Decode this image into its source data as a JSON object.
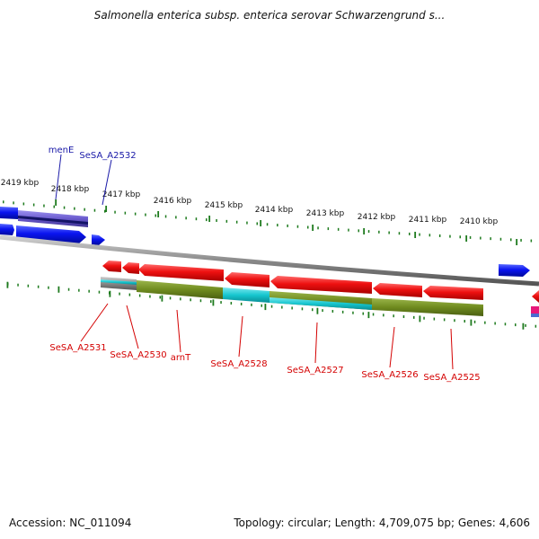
{
  "title": "Salmonella enterica subsp. enterica serovar Schwarzengrund s...",
  "footer": {
    "accession": "Accession: NC_011094",
    "info": "Topology: circular; Length: 4,709,075 bp; Genes: 4,606"
  },
  "colors": {
    "forward_gene": "#0a14f0",
    "reverse_gene": "#ee1111",
    "backbone": "#8a8a8a",
    "tick": "#1d7a1d",
    "forward_label": "#1a1aa8",
    "reverse_label": "#d40000",
    "olive": "#6f8b1f",
    "cyan": "#16c6cf",
    "purple": "#6a5acd"
  },
  "ticks": [
    {
      "label": "2419 kbp"
    },
    {
      "label": "2418 kbp"
    },
    {
      "label": "2417 kbp"
    },
    {
      "label": "2416 kbp"
    },
    {
      "label": "2415 kbp"
    },
    {
      "label": "2414 kbp"
    },
    {
      "label": "2413 kbp"
    },
    {
      "label": "2412 kbp"
    },
    {
      "label": "2411 kbp"
    },
    {
      "label": "2410 kbp"
    }
  ],
  "forward_labels": [
    {
      "name": "menE"
    },
    {
      "name": "SeSA_A2532"
    }
  ],
  "reverse_labels": [
    {
      "name": "SeSA_A2531"
    },
    {
      "name": "SeSA_A2530"
    },
    {
      "name": "arnT"
    },
    {
      "name": "SeSA_A2528"
    },
    {
      "name": "SeSA_A2527"
    },
    {
      "name": "SeSA_A2526"
    },
    {
      "name": "SeSA_A2525"
    }
  ]
}
